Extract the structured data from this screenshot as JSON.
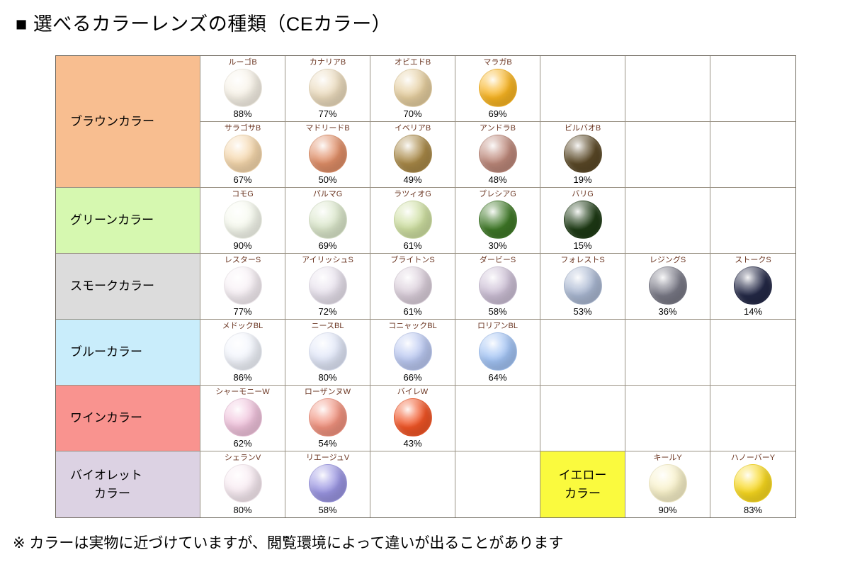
{
  "title": "■ 選べるカラーレンズの種類（CEカラー）",
  "footnote": "※ カラーは実物に近づけていますが、閲覧環境によって違いが出ることがあります",
  "chart_data": {
    "type": "table",
    "title": "選べるカラーレンズの種類（CEカラー）",
    "columns": 7,
    "rows": [
      {
        "label": "ブラウンカラー",
        "label_bg": "#F8BE90",
        "lines": [
          [
            {
              "name": "ルーゴB",
              "pct": "88%",
              "color": "#F8F3E8"
            },
            {
              "name": "カナリアB",
              "pct": "77%",
              "color": "#ECDCBE"
            },
            {
              "name": "オビエドB",
              "pct": "70%",
              "color": "#E6CFA0"
            },
            {
              "name": "マラガB",
              "pct": "69%",
              "color": "#F9B522"
            },
            null,
            null,
            null
          ],
          [
            {
              "name": "サラゴサB",
              "pct": "67%",
              "color": "#F6D8AD"
            },
            {
              "name": "マドリードB",
              "pct": "50%",
              "color": "#E18F68"
            },
            {
              "name": "イベリアB",
              "pct": "49%",
              "color": "#AA8A48"
            },
            {
              "name": "アンドラB",
              "pct": "48%",
              "color": "#BE897B"
            },
            {
              "name": "ビルバオB",
              "pct": "19%",
              "color": "#5B4927"
            },
            null,
            null
          ]
        ]
      },
      {
        "label": "グリーンカラー",
        "label_bg": "#D6F8B0",
        "lines": [
          [
            {
              "name": "コモG",
              "pct": "90%",
              "color": "#F7FAEF"
            },
            {
              "name": "パルマG",
              "pct": "69%",
              "color": "#DCE8CC"
            },
            {
              "name": "ラツィオG",
              "pct": "61%",
              "color": "#CFE0A2"
            },
            {
              "name": "ブレシアG",
              "pct": "30%",
              "color": "#3F7927"
            },
            {
              "name": "バリG",
              "pct": "15%",
              "color": "#1E3B15"
            },
            null,
            null
          ]
        ]
      },
      {
        "label": "スモークカラー",
        "label_bg": "#DCDCDC",
        "lines": [
          [
            {
              "name": "レスターS",
              "pct": "77%",
              "color": "#F8F1F6"
            },
            {
              "name": "アイリッシュS",
              "pct": "72%",
              "color": "#E9E3EE"
            },
            {
              "name": "ブライトンS",
              "pct": "61%",
              "color": "#DCD0DC"
            },
            {
              "name": "ダービーS",
              "pct": "58%",
              "color": "#CDC0D6"
            },
            {
              "name": "フォレストS",
              "pct": "53%",
              "color": "#ABB9D3"
            },
            {
              "name": "レジングS",
              "pct": "36%",
              "color": "#7A7A87"
            },
            {
              "name": "ストークS",
              "pct": "14%",
              "color": "#242947"
            }
          ]
        ]
      },
      {
        "label": "ブルーカラー",
        "label_bg": "#C9EDFB",
        "lines": [
          [
            {
              "name": "メドックBL",
              "pct": "86%",
              "color": "#F3F6FD"
            },
            {
              "name": "ニースBL",
              "pct": "80%",
              "color": "#E2E8F9"
            },
            {
              "name": "コニャックBL",
              "pct": "66%",
              "color": "#BBC9F2"
            },
            {
              "name": "ロリアンBL",
              "pct": "64%",
              "color": "#A3C4F5"
            },
            null,
            null,
            null
          ]
        ]
      },
      {
        "label": "ワインカラー",
        "label_bg": "#F9938F",
        "lines": [
          [
            {
              "name": "シャーモニーW",
              "pct": "62%",
              "color": "#F1C4DD"
            },
            {
              "name": "ローザンヌW",
              "pct": "54%",
              "color": "#F2937F"
            },
            {
              "name": "バイレW",
              "pct": "43%",
              "color": "#F25526"
            },
            null,
            null,
            null,
            null
          ]
        ]
      },
      {
        "label": "バイオレット\n　　カラー",
        "label_bg": "#DCD2E3",
        "lines": [
          [
            {
              "name": "シェランV",
              "pct": "80%",
              "color": "#F9ECF3"
            },
            {
              "name": "リエージュV",
              "pct": "58%",
              "color": "#9B96E3"
            },
            null,
            null,
            {
              "type": "label",
              "text": "イエロー\nカラー",
              "bg": "#FAFA3E"
            },
            {
              "name": "キールY",
              "pct": "90%",
              "color": "#F9F2CA"
            },
            {
              "name": "ハノーバーY",
              "pct": "83%",
              "color": "#F9D91F"
            }
          ]
        ]
      }
    ]
  }
}
